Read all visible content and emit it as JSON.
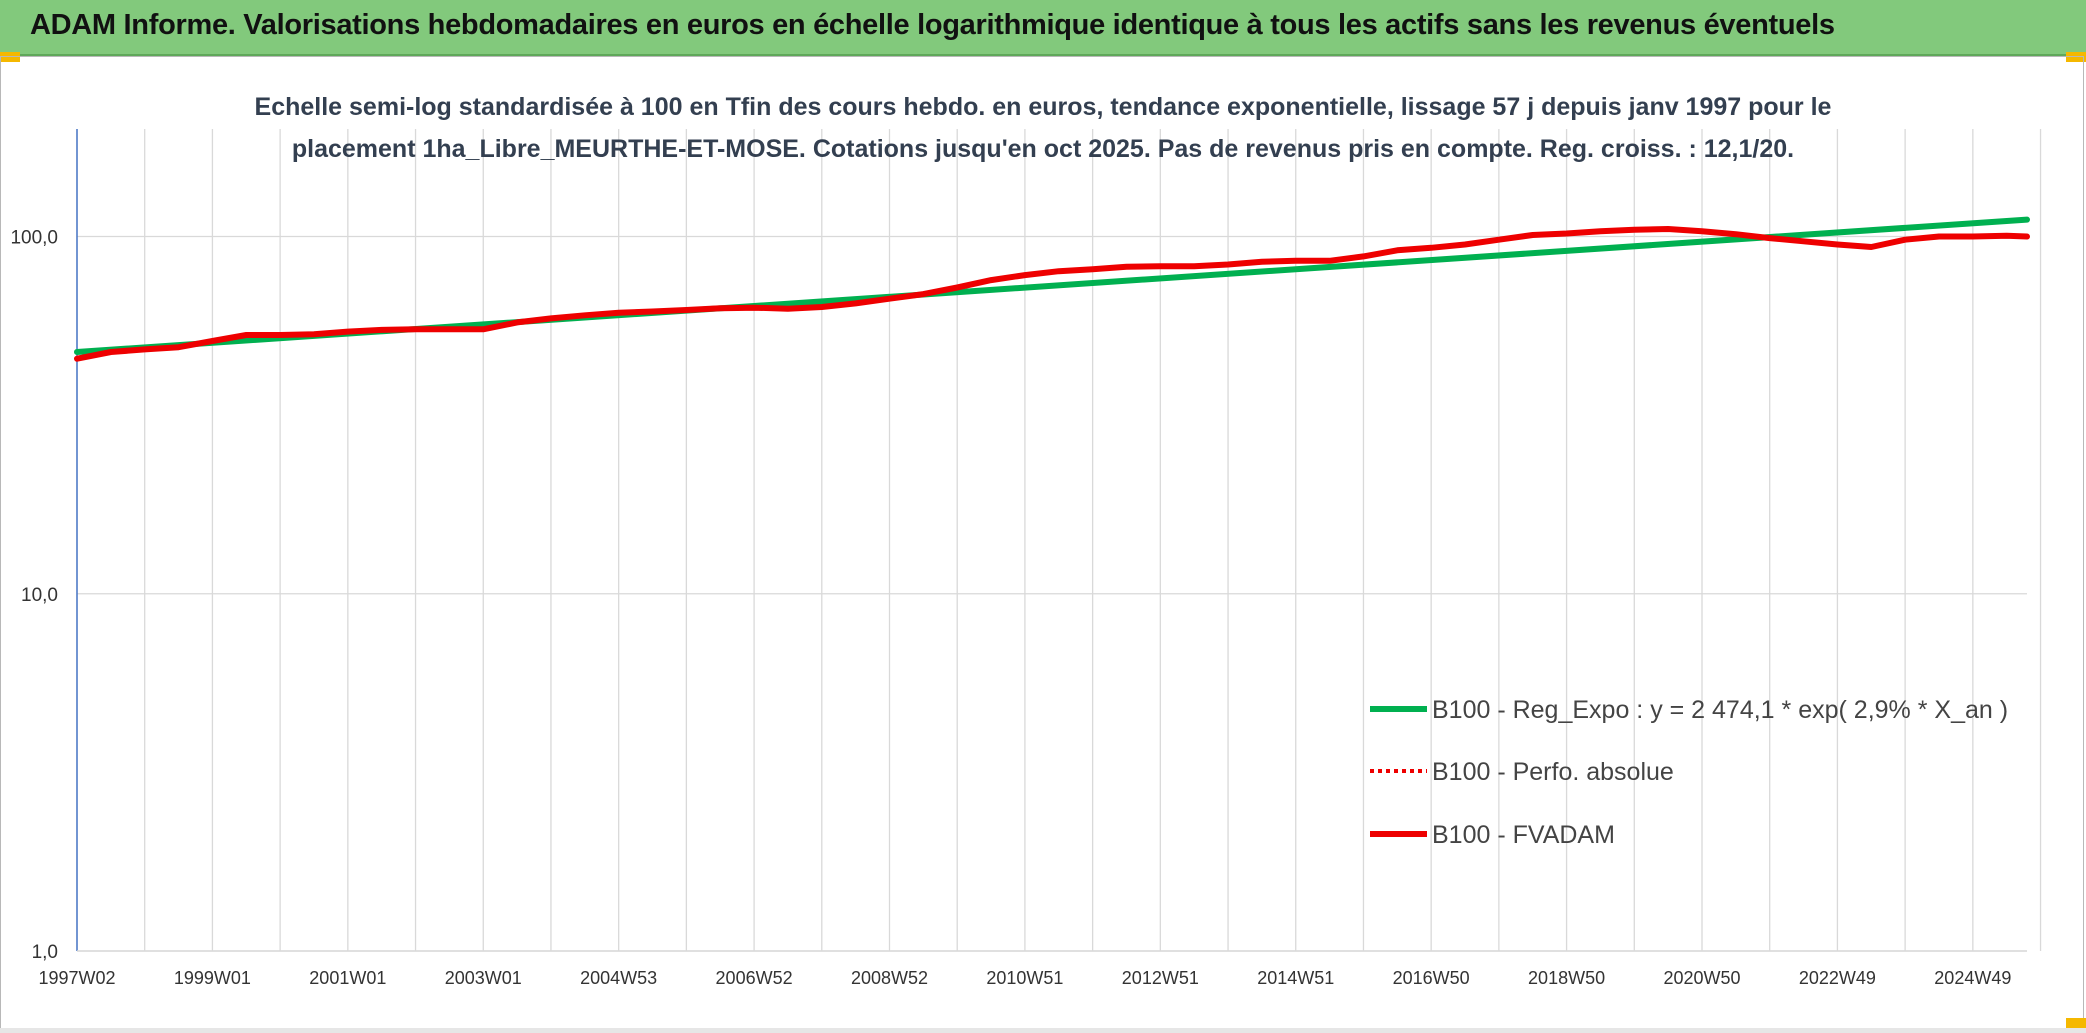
{
  "header": {
    "title": "ADAM Informe. Valorisations hebdomadaires en euros en échelle logarithmique identique à tous les actifs sans les revenus éventuels"
  },
  "chart_data": {
    "type": "line",
    "title_lines": [
      "Echelle semi-log standardisée à 100 en Tfin des cours hebdo. en euros, tendance exponentielle, lissage 57 j depuis janv 1997 pour le",
      "placement 1ha_Libre_MEURTHE-ET-MOSE. Cotations jusqu'en oct 2025. Pas de revenus pris en compte. Reg. croiss. : 12,1/20."
    ],
    "y_scale": "log",
    "ylim": [
      1,
      200
    ],
    "y_ticks": [
      {
        "value": 1,
        "label": "1,0"
      },
      {
        "value": 10,
        "label": "10,0"
      },
      {
        "value": 100,
        "label": "100,0"
      }
    ],
    "xlim": [
      0,
      28.8
    ],
    "x_ticks": [
      {
        "x": 0,
        "label": "1997W02"
      },
      {
        "x": 2,
        "label": "1999W01"
      },
      {
        "x": 4,
        "label": "2001W01"
      },
      {
        "x": 6,
        "label": "2003W01"
      },
      {
        "x": 8,
        "label": "2004W53"
      },
      {
        "x": 10,
        "label": "2006W52"
      },
      {
        "x": 12,
        "label": "2008W52"
      },
      {
        "x": 14,
        "label": "2010W51"
      },
      {
        "x": 16,
        "label": "2012W51"
      },
      {
        "x": 18,
        "label": "2014W51"
      },
      {
        "x": 20,
        "label": "2016W50"
      },
      {
        "x": 22,
        "label": "2018W50"
      },
      {
        "x": 24,
        "label": "2020W50"
      },
      {
        "x": 26,
        "label": "2022W49"
      },
      {
        "x": 28,
        "label": "2024W49"
      }
    ],
    "vertical_grid_count": 29,
    "colors": {
      "reg": "#00b050",
      "fvadam": "#ee0000",
      "perfo": "#ee0000",
      "grid": "#d9d9d9",
      "axis": "#4472c4"
    },
    "legend": [
      {
        "name": "B100 - Reg_Expo : y = 2 474,1 * exp( 2,9% *  X_an )",
        "style": "solid-green"
      },
      {
        "name": "B100 - Perfo. absolue",
        "style": "dotted-red"
      },
      {
        "name": "B100 - FVADAM",
        "style": "solid-red"
      }
    ],
    "series": [
      {
        "name": "B100 - Reg_Expo",
        "x": [
          0,
          28.8
        ],
        "values": [
          47.5,
          111.5
        ]
      },
      {
        "name": "B100 - FVADAM",
        "x": [
          0,
          0.5,
          1,
          1.5,
          2,
          2.5,
          3,
          3.5,
          4,
          4.5,
          5,
          5.5,
          6,
          6.5,
          7,
          7.5,
          8,
          8.5,
          9,
          9.5,
          10,
          10.5,
          11,
          11.5,
          12,
          12.5,
          13,
          13.5,
          14,
          14.5,
          15,
          15.5,
          16,
          16.5,
          17,
          17.5,
          18,
          18.5,
          19,
          19.5,
          20,
          20.5,
          21,
          21.5,
          22,
          22.5,
          23,
          23.5,
          24,
          24.5,
          25,
          25.5,
          26,
          26.5,
          27,
          27.5,
          28,
          28.5,
          28.8
        ],
        "values": [
          45.5,
          47.5,
          48.3,
          49.0,
          51.0,
          53.0,
          53.0,
          53.3,
          54.2,
          54.8,
          55.0,
          55.0,
          55.0,
          57.5,
          59.0,
          60.2,
          61.2,
          61.7,
          62.3,
          63.0,
          63.2,
          62.8,
          63.5,
          65.0,
          67.0,
          69.0,
          72.0,
          75.5,
          78.0,
          80.0,
          81.0,
          82.3,
          82.6,
          82.6,
          83.5,
          85.0,
          85.5,
          85.5,
          88.0,
          91.5,
          93.0,
          95.0,
          98.0,
          101.0,
          102.0,
          103.5,
          104.5,
          105.0,
          103.5,
          101.5,
          99.0,
          97.0,
          95.0,
          93.5,
          98.0,
          100.0,
          100.0,
          100.5,
          100.0
        ]
      }
    ]
  }
}
